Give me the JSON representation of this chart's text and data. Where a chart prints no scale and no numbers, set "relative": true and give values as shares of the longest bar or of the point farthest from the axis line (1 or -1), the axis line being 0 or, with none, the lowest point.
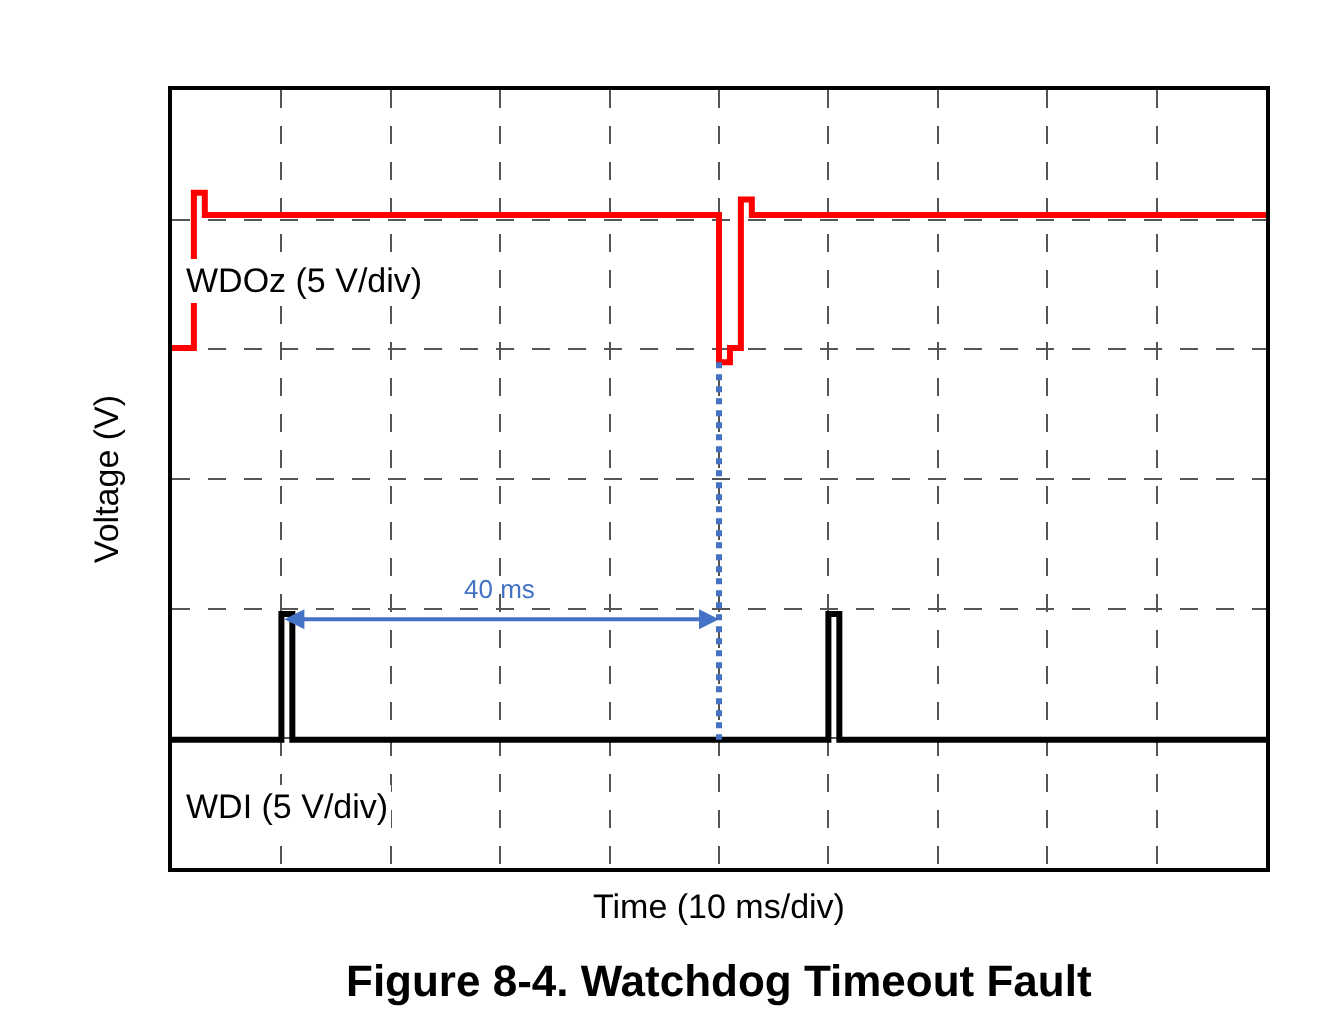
{
  "chart_data": {
    "type": "step",
    "relative": true,
    "title": "Figure 8-4. Watchdog Timeout Fault",
    "xlabel": "Time (10 ms/div)",
    "ylabel": "Voltage (V)",
    "grid": true,
    "legend": false,
    "tick_labels": false,
    "line_style": "solid",
    "categories": [
      null,
      null,
      null,
      null,
      null,
      null,
      null,
      null,
      null,
      null,
      null,
      null,
      null,
      null,
      null,
      null,
      null,
      null,
      null,
      null,
      null,
      null,
      null,
      null,
      null,
      null,
      null,
      null,
      null,
      null,
      null,
      null,
      null,
      null,
      null,
      null,
      null,
      null,
      null,
      null,
      null,
      null,
      null,
      null,
      null,
      null,
      null,
      null,
      null,
      null,
      null,
      null,
      null,
      null,
      null,
      null,
      null,
      null,
      null,
      null,
      null,
      null,
      null,
      null,
      null,
      null,
      null,
      null,
      null,
      null,
      null,
      null,
      null,
      null,
      null,
      null,
      null,
      null,
      null,
      null,
      null,
      null,
      null,
      null,
      null,
      null,
      null,
      null,
      null,
      null,
      null,
      null,
      null,
      null,
      null,
      null,
      null,
      null,
      null,
      null,
      null
    ],
    "series": [
      {
        "name": "WDOz (5 V/div)",
        "color": "#ff0000",
        "values": [
          0.77,
          0.77,
          1.0,
          0.967,
          0.967,
          0.967,
          0.967,
          0.967,
          0.967,
          0.967,
          0.967,
          0.967,
          0.967,
          0.967,
          0.967,
          0.967,
          0.967,
          0.967,
          0.967,
          0.967,
          0.967,
          0.967,
          0.967,
          0.967,
          0.967,
          0.967,
          0.967,
          0.967,
          0.967,
          0.967,
          0.967,
          0.967,
          0.967,
          0.967,
          0.967,
          0.967,
          0.967,
          0.967,
          0.967,
          0.967,
          0.967,
          0.967,
          0.967,
          0.967,
          0.967,
          0.967,
          0.967,
          0.967,
          0.967,
          0.967,
          0.749,
          0.77,
          0.99,
          0.967,
          0.967,
          0.967,
          0.967,
          0.967,
          0.967,
          0.967,
          0.967,
          0.967,
          0.967,
          0.967,
          0.967,
          0.967,
          0.967,
          0.967,
          0.967,
          0.967,
          0.967,
          0.967,
          0.967,
          0.967,
          0.967,
          0.967,
          0.967,
          0.967,
          0.967,
          0.967,
          0.967,
          0.967,
          0.967,
          0.967,
          0.967,
          0.967,
          0.967,
          0.967,
          0.967,
          0.967,
          0.967,
          0.967,
          0.967,
          0.967,
          0.967,
          0.967,
          0.967,
          0.967,
          0.967,
          0.967,
          0.967
        ]
      },
      {
        "name": "WDI (5 V/div)",
        "color": "#000000",
        "values": [
          0.19,
          0.19,
          0.19,
          0.19,
          0.19,
          0.19,
          0.19,
          0.19,
          0.19,
          0.19,
          0.376,
          0.19,
          0.19,
          0.19,
          0.19,
          0.19,
          0.19,
          0.19,
          0.19,
          0.19,
          0.19,
          0.19,
          0.19,
          0.19,
          0.19,
          0.19,
          0.19,
          0.19,
          0.19,
          0.19,
          0.19,
          0.19,
          0.19,
          0.19,
          0.19,
          0.19,
          0.19,
          0.19,
          0.19,
          0.19,
          0.19,
          0.19,
          0.19,
          0.19,
          0.19,
          0.19,
          0.19,
          0.19,
          0.19,
          0.19,
          0.19,
          0.19,
          0.19,
          0.19,
          0.19,
          0.19,
          0.19,
          0.19,
          0.19,
          0.19,
          0.376,
          0.19,
          0.19,
          0.19,
          0.19,
          0.19,
          0.19,
          0.19,
          0.19,
          0.19,
          0.19,
          0.19,
          0.19,
          0.19,
          0.19,
          0.19,
          0.19,
          0.19,
          0.19,
          0.19,
          0.19,
          0.19,
          0.19,
          0.19,
          0.19,
          0.19,
          0.19,
          0.19,
          0.19,
          0.19,
          0.19,
          0.19,
          0.19,
          0.19,
          0.19,
          0.19,
          0.19,
          0.19,
          0.19,
          0.19,
          0.19
        ]
      }
    ],
    "annotations": [
      "40 ms"
    ]
  }
}
